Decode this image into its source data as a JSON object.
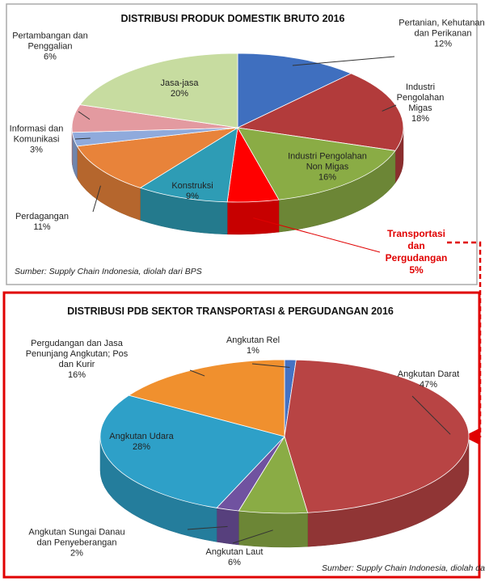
{
  "chart_data": [
    {
      "type": "pie",
      "title": "DISTRIBUSI PRODUK DOMESTIK BRUTO 2016",
      "categories": [
        "Pertanian, Kehutanan, dan Perikanan",
        "Industri Pengolahan Migas",
        "Industri Pengolahan Non Migas",
        "Transportasi dan Pergudangan",
        "Konstruksi",
        "Perdagangan",
        "Informasi dan Komunikasi",
        "Pertambangan dan Penggalian",
        "Jasa-jasa"
      ],
      "values": [
        12,
        18,
        16,
        5,
        9,
        11,
        3,
        6,
        20
      ],
      "value_labels": [
        "12%",
        "18%",
        "16%",
        "5%",
        "9%",
        "11%",
        "3%",
        "6%",
        "20%"
      ],
      "colors": [
        "#3f6fbf",
        "#b23b3b",
        "#8aac45",
        "#ff0000",
        "#2e9cb5",
        "#e8833a",
        "#8faadc",
        "#e39aa0",
        "#c7dca0"
      ],
      "source": "Sumber: Supply Chain Indonesia, diolah dari BPS"
    },
    {
      "type": "pie",
      "title": "DISTRIBUSI PDB SEKTOR TRANSPORTASI & PERGUDANGAN 2016",
      "categories": [
        "Angkutan Rel",
        "Angkutan Darat",
        "Angkutan Laut",
        "Angkutan Sungai Danau dan Penyeberangan",
        "Angkutan Udara",
        "Pergudangan dan Jasa Penunjang Angkutan; Pos dan Kurir"
      ],
      "values": [
        1,
        47,
        6,
        2,
        28,
        16
      ],
      "value_labels": [
        "1%",
        "47%",
        "6%",
        "2%",
        "28%",
        "16%"
      ],
      "colors": [
        "#4472c4",
        "#b84444",
        "#8aac45",
        "#7052a0",
        "#2ea0c8",
        "#f0902e"
      ],
      "source": "Sumber: Supply Chain Indonesia, diolah dari BPS"
    }
  ]
}
